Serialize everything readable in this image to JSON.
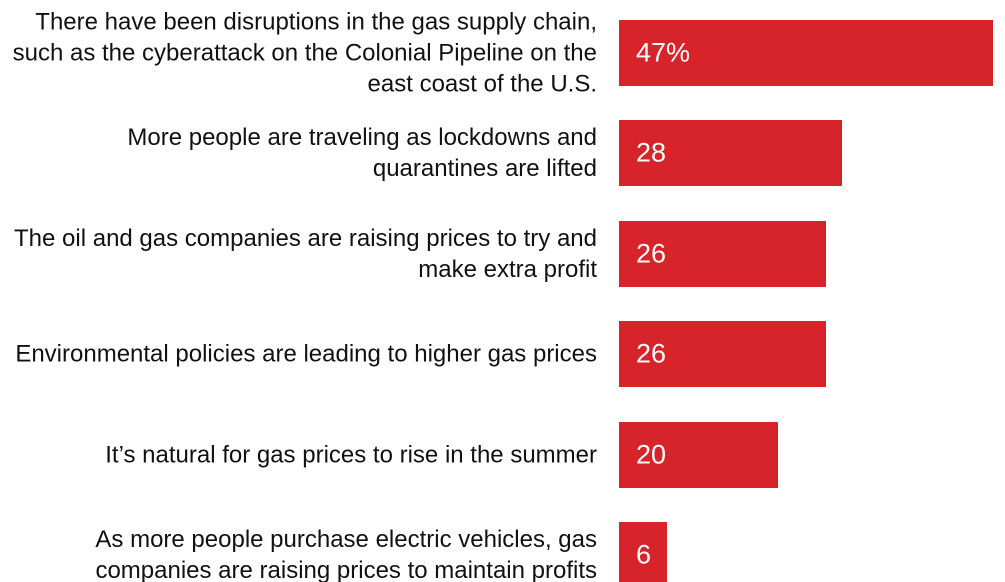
{
  "chart_data": {
    "type": "bar",
    "orientation": "horizontal",
    "categories": [
      "There have been disruptions in the gas supply chain, such as the cyberattack on the Colonial Pipeline on the east coast of the U.S.",
      "More people are traveling as lockdowns and quarantines are lifted",
      "The oil and gas companies are raising prices to try and make extra profit",
      "Environmental policies are leading to higher gas prices",
      "It’s natural for gas prices to rise in the summer",
      "As more people purchase electric vehicles, gas companies are raising prices to maintain profits"
    ],
    "values": [
      47,
      28,
      26,
      26,
      20,
      6
    ],
    "value_labels": [
      "47%",
      "28",
      "26",
      "26",
      "20",
      "6"
    ],
    "color": "#d7232a"
  }
}
